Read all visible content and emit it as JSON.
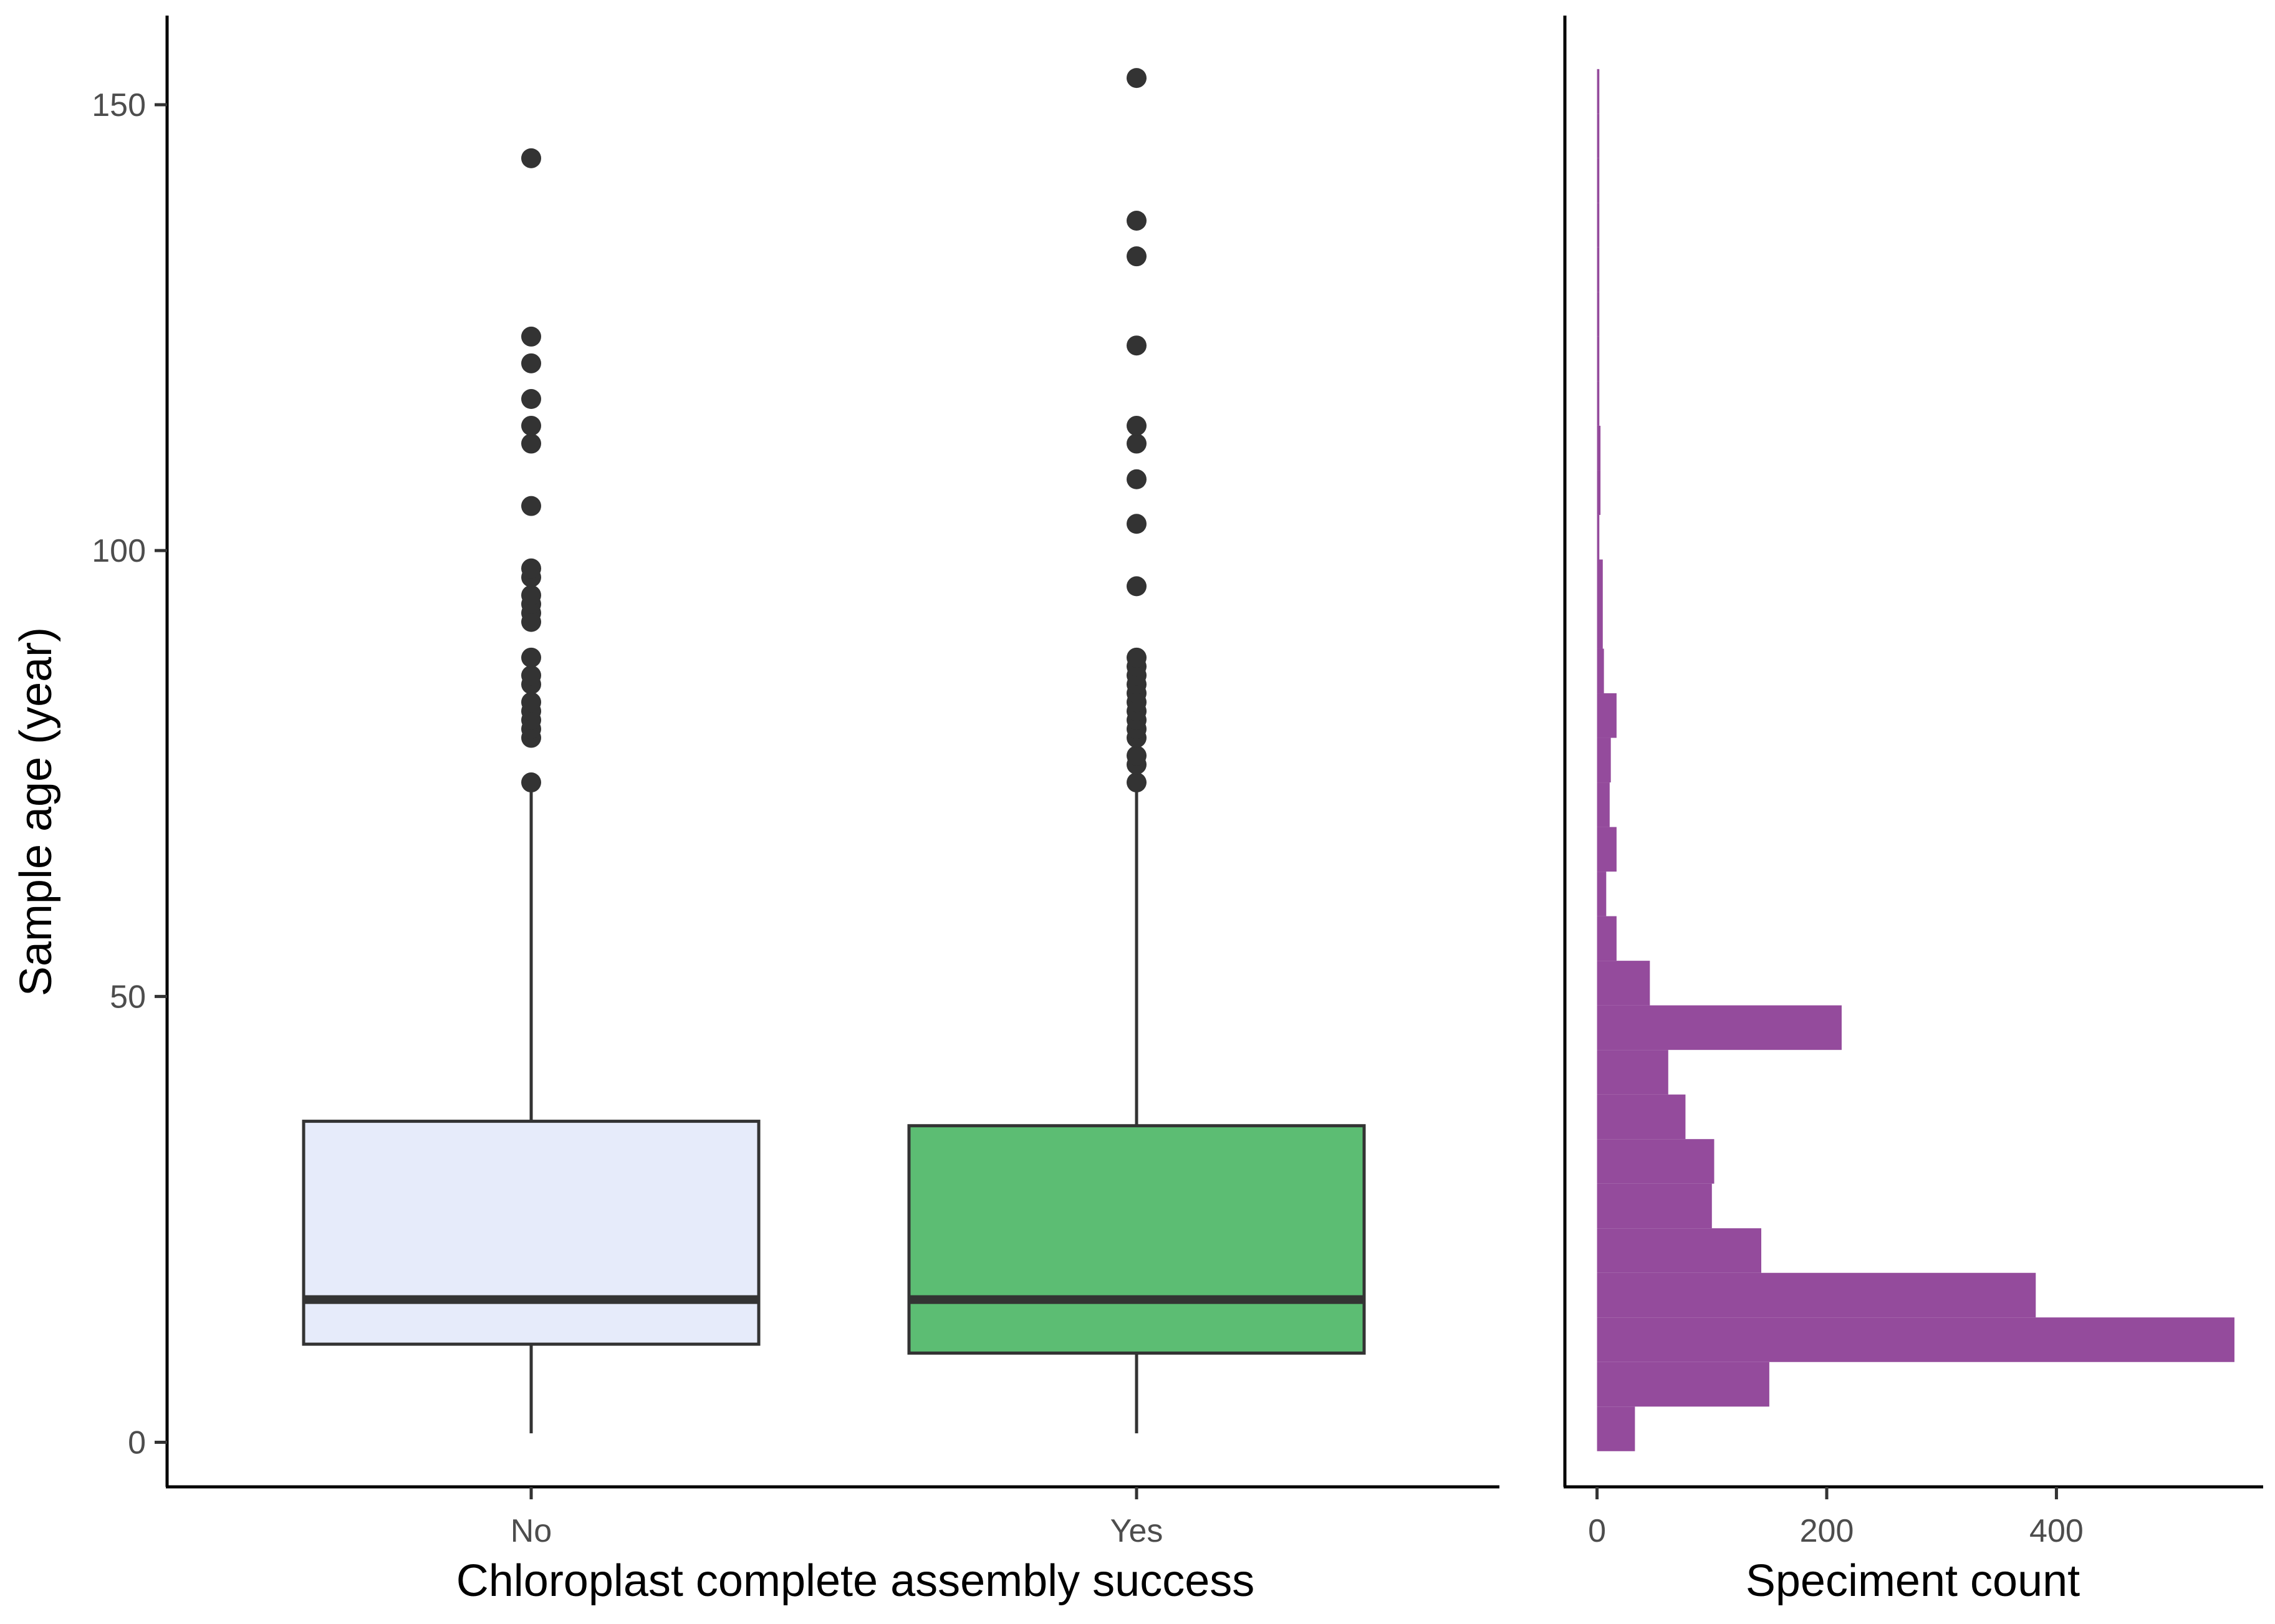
{
  "colors": {
    "no_box": "#e6ebfa",
    "yes_box": "#5cbd73",
    "hist": "#944b9c",
    "ink": "#333333",
    "axis": "#000000",
    "tick_text": "#4d4d4d"
  },
  "chart_data": [
    {
      "type": "box",
      "title": "",
      "xlabel": "Chloroplast complete assembly success",
      "ylabel": "Sample age (year)",
      "ylim": [
        -5,
        160
      ],
      "yticks": [
        0,
        50,
        100,
        150
      ],
      "ytick_labels": [
        "0",
        "50",
        "100",
        "150"
      ],
      "categories": [
        "No",
        "Yes"
      ],
      "boxes": [
        {
          "category": "No",
          "min": 1,
          "q1": 11,
          "median": 16,
          "q3": 36,
          "max": 73,
          "outliers": [
            74,
            79,
            80,
            81,
            82,
            83,
            85,
            86,
            88,
            92,
            93,
            94,
            95,
            97,
            98,
            105,
            112,
            114,
            117,
            121,
            124,
            144
          ]
        },
        {
          "category": "Yes",
          "min": 1,
          "q1": 10,
          "median": 16,
          "q3": 35.5,
          "max": 73,
          "outliers": [
            74,
            76,
            77,
            79,
            80,
            81,
            82,
            83,
            84,
            85,
            86,
            87,
            88,
            96,
            103,
            108,
            112,
            114,
            123,
            133,
            137,
            153
          ]
        }
      ]
    },
    {
      "type": "bar",
      "orientation": "horizontal",
      "title": "",
      "xlabel": "Speciment count",
      "ylabel": "",
      "xlim": [
        -28,
        580
      ],
      "xticks": [
        0,
        200,
        400
      ],
      "xtick_labels": [
        "0",
        "200",
        "400"
      ],
      "bins": [
        {
          "from": -1,
          "to": 4,
          "count": 33
        },
        {
          "from": 4,
          "to": 9,
          "count": 150
        },
        {
          "from": 9,
          "to": 14,
          "count": 555
        },
        {
          "from": 14,
          "to": 19,
          "count": 382
        },
        {
          "from": 19,
          "to": 24,
          "count": 143
        },
        {
          "from": 24,
          "to": 29,
          "count": 100
        },
        {
          "from": 29,
          "to": 34,
          "count": 102
        },
        {
          "from": 34,
          "to": 39,
          "count": 77
        },
        {
          "from": 39,
          "to": 44,
          "count": 62
        },
        {
          "from": 44,
          "to": 49,
          "count": 213
        },
        {
          "from": 49,
          "to": 54,
          "count": 46
        },
        {
          "from": 54,
          "to": 59,
          "count": 17
        },
        {
          "from": 59,
          "to": 64,
          "count": 8
        },
        {
          "from": 64,
          "to": 69,
          "count": 17
        },
        {
          "from": 69,
          "to": 74,
          "count": 11
        },
        {
          "from": 74,
          "to": 79,
          "count": 12
        },
        {
          "from": 79,
          "to": 84,
          "count": 17
        },
        {
          "from": 84,
          "to": 89,
          "count": 6
        },
        {
          "from": 89,
          "to": 94,
          "count": 5
        },
        {
          "from": 94,
          "to": 99,
          "count": 5
        },
        {
          "from": 99,
          "to": 104,
          "count": 2
        },
        {
          "from": 104,
          "to": 109,
          "count": 3
        },
        {
          "from": 109,
          "to": 114,
          "count": 3
        },
        {
          "from": 114,
          "to": 119,
          "count": 2
        },
        {
          "from": 119,
          "to": 124,
          "count": 2
        },
        {
          "from": 124,
          "to": 129,
          "count": 2
        },
        {
          "from": 129,
          "to": 134,
          "count": 2
        },
        {
          "from": 134,
          "to": 139,
          "count": 2
        },
        {
          "from": 139,
          "to": 144,
          "count": 2
        },
        {
          "from": 144,
          "to": 149,
          "count": 2
        },
        {
          "from": 149,
          "to": 154,
          "count": 2
        }
      ]
    }
  ]
}
